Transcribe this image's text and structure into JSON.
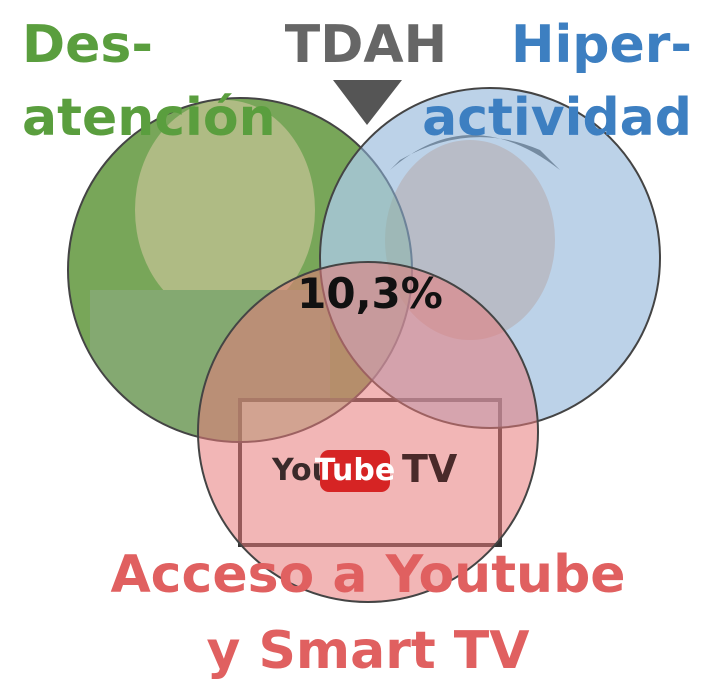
{
  "labels": {
    "left": [
      "Des-",
      "atención"
    ],
    "top": "TDAH",
    "right": [
      "Hiper-",
      "actividad"
    ],
    "center": "10,3%",
    "logo": {
      "you": "You",
      "tube": "Tube",
      "tv": "TV"
    },
    "bottom": [
      "Acceso a Youtube",
      "y Smart TV"
    ]
  }
}
